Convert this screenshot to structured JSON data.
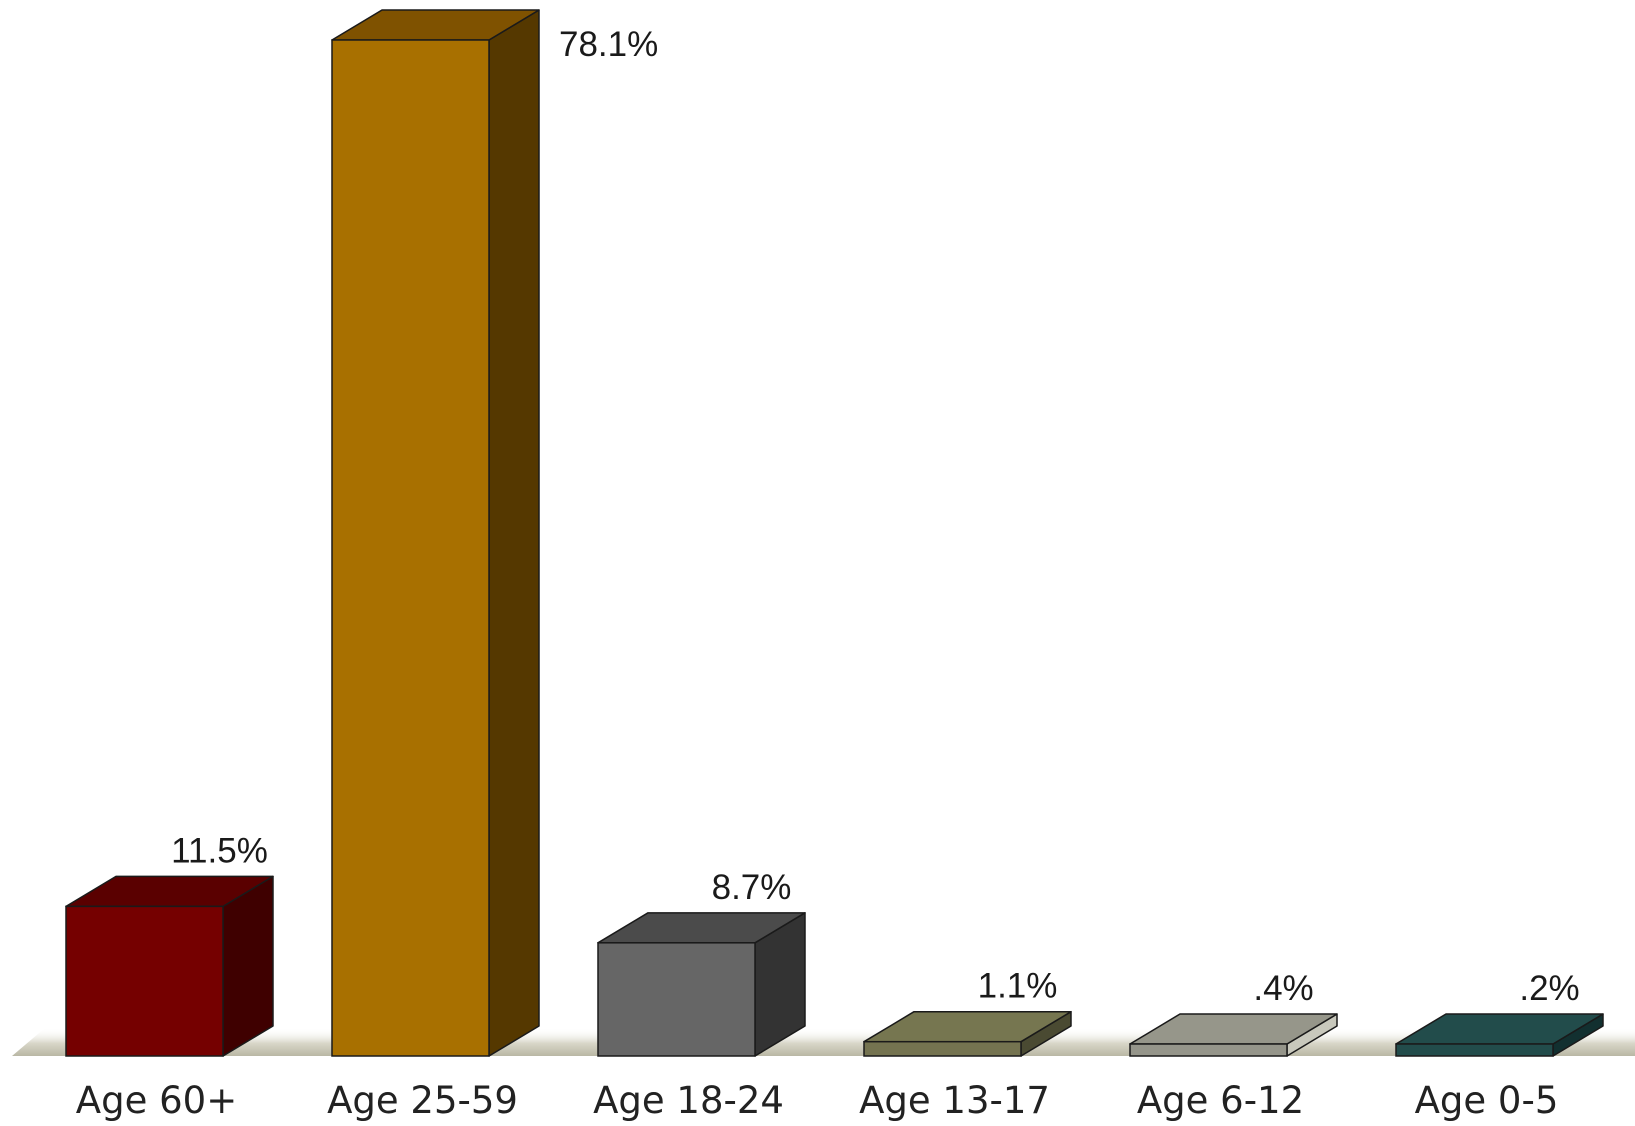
{
  "chart_data": {
    "type": "bar",
    "style": "3d",
    "categories": [
      "Age 60+",
      "Age 25-59",
      "Age 18-24",
      "Age 13-17",
      "Age 6-12",
      "Age 0-5"
    ],
    "values": [
      11.5,
      78.1,
      8.7,
      1.1,
      0.4,
      0.2
    ],
    "value_labels": [
      "11.5%",
      "78.1%",
      "8.7%",
      "1.1%",
      ".4%",
      ".2%"
    ],
    "colors": [
      "#750000",
      "#A87000",
      "#666666",
      "#747350",
      "#95958A",
      "#224C4B"
    ],
    "side_colors": [
      "#3F0000",
      "#553800",
      "#333333",
      "#4A4A32",
      "#C8C8BC",
      "#123030"
    ],
    "top_colors": [
      "#5A0000",
      "#7F5200",
      "#4B4B4B",
      "#767650",
      "#96968A",
      "#224C4B"
    ],
    "floor_color": "#C9C7B8",
    "title": "",
    "xlabel": "",
    "ylabel": "",
    "ylim": [
      0,
      78.1
    ],
    "grid": false,
    "legend": "none"
  }
}
